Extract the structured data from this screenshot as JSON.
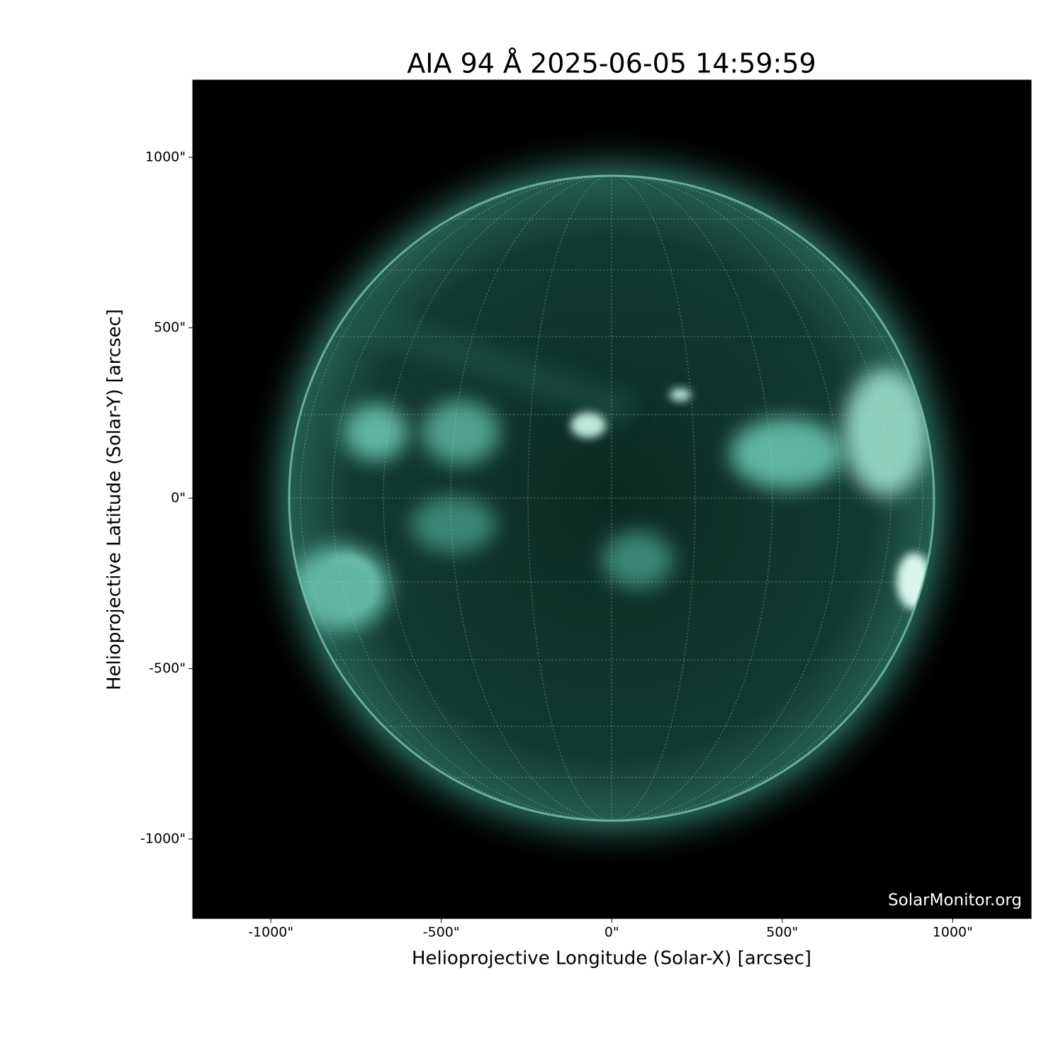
{
  "chart_data": {
    "type": "image",
    "title": "AIA 94 Å 2025-06-05 14:59:59",
    "x_label": "Helioprojective Longitude (Solar-X) [arcsec]",
    "y_label": "Helioprojective Latitude (Solar-Y) [arcsec]",
    "watermark": "SolarMonitor.org",
    "xlim": [
      -1229,
      1230
    ],
    "ylim": [
      -1233,
      1227
    ],
    "xticks": [
      {
        "value": -1000,
        "label": "-1000\""
      },
      {
        "value": -500,
        "label": "-500\""
      },
      {
        "value": 0,
        "label": "0\""
      },
      {
        "value": 500,
        "label": "500\""
      },
      {
        "value": 1000,
        "label": "1000\""
      }
    ],
    "yticks": [
      {
        "value": -1000,
        "label": "-1000\""
      },
      {
        "value": -500,
        "label": "-500\""
      },
      {
        "value": 0,
        "label": "0\""
      },
      {
        "value": 500,
        "label": "500\""
      },
      {
        "value": 1000,
        "label": "1000\""
      }
    ]
  }
}
